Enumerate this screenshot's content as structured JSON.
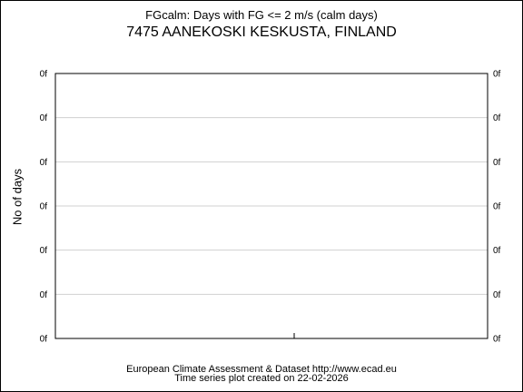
{
  "chart_data": {
    "type": "line",
    "title": "FGcalm: Days with FG <= 2 m/s (calm days)",
    "subtitle": "7475 AANEKOSKI KESKUSTA, FINLAND",
    "ylabel": "No of days",
    "xlabel": "",
    "y_tick_labels": [
      "0f",
      "0f",
      "0f",
      "0f",
      "0f",
      "0f",
      "0f"
    ],
    "grid": true,
    "series": []
  },
  "footer": {
    "source": "European Climate Assessment & Dataset  http://www.ecad.eu",
    "created": "Time series plot created on 22-02-2026"
  }
}
